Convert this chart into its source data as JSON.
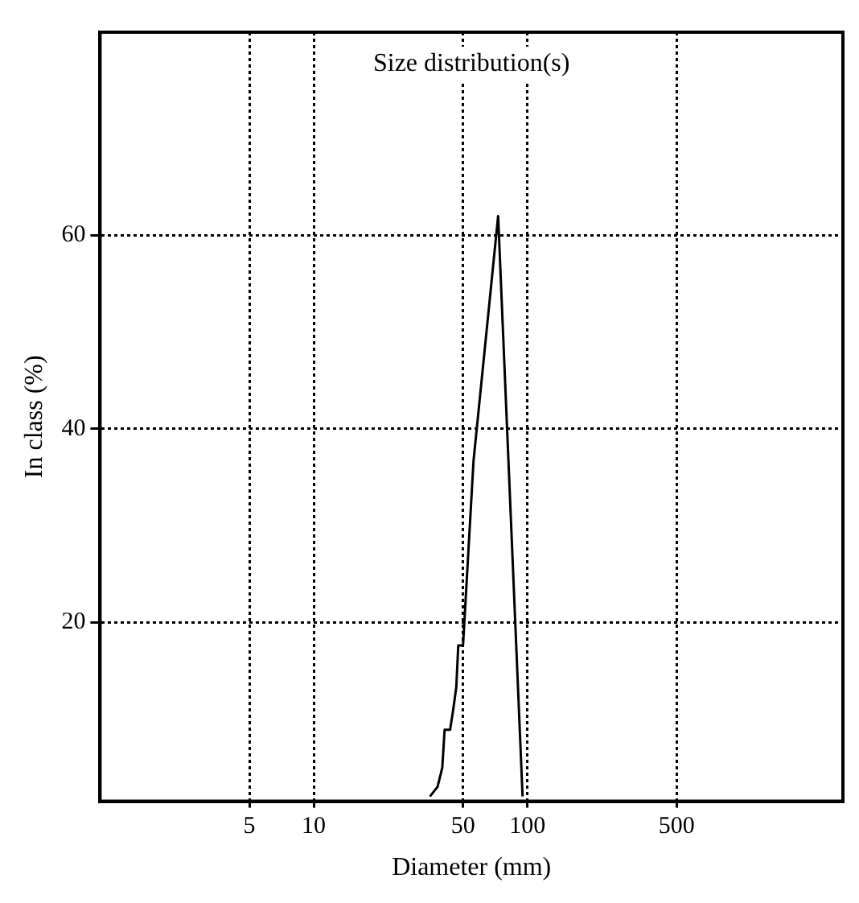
{
  "chart_data": {
    "type": "line",
    "title": "Size distribution(s)",
    "xlabel": "Diameter (mm)",
    "ylabel": "In class (%)",
    "x": [
      35,
      38,
      40,
      41,
      43.5,
      45,
      46.5,
      47.5,
      50,
      56,
      73,
      95
    ],
    "series": [
      {
        "color": "#000000",
        "values": [
          2,
          3,
          5,
          8.9,
          8.9,
          11,
          13.3,
          17.6,
          17.6,
          36.7,
          62,
          2
        ]
      }
    ],
    "log": "x",
    "xlim": [
      1,
      3000
    ],
    "xticks": [
      5,
      10,
      50,
      100,
      500
    ],
    "ylim": [
      1.5,
      81
    ],
    "yticks": [
      20,
      40,
      60
    ],
    "grid": true,
    "legend": false,
    "marker": "none",
    "line_style": "solid"
  }
}
